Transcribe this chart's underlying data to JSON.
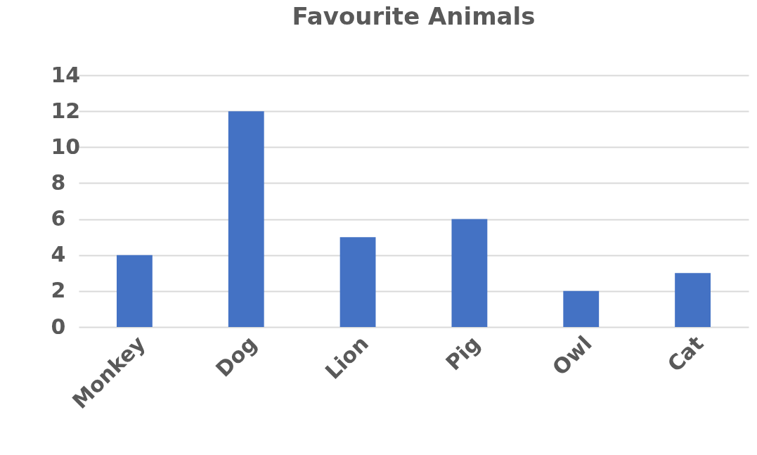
{
  "chart_data": {
    "type": "bar",
    "title": "Favourite Animals",
    "categories": [
      "Monkey",
      "Dog",
      "Lion",
      "Pig",
      "Owl",
      "Cat"
    ],
    "values": [
      4,
      12,
      5,
      6,
      2,
      3
    ],
    "color": "#4472c4",
    "ylim": [
      0,
      14
    ],
    "yticks": [
      0,
      2,
      4,
      6,
      8,
      10,
      12,
      14
    ],
    "grid": "y"
  }
}
